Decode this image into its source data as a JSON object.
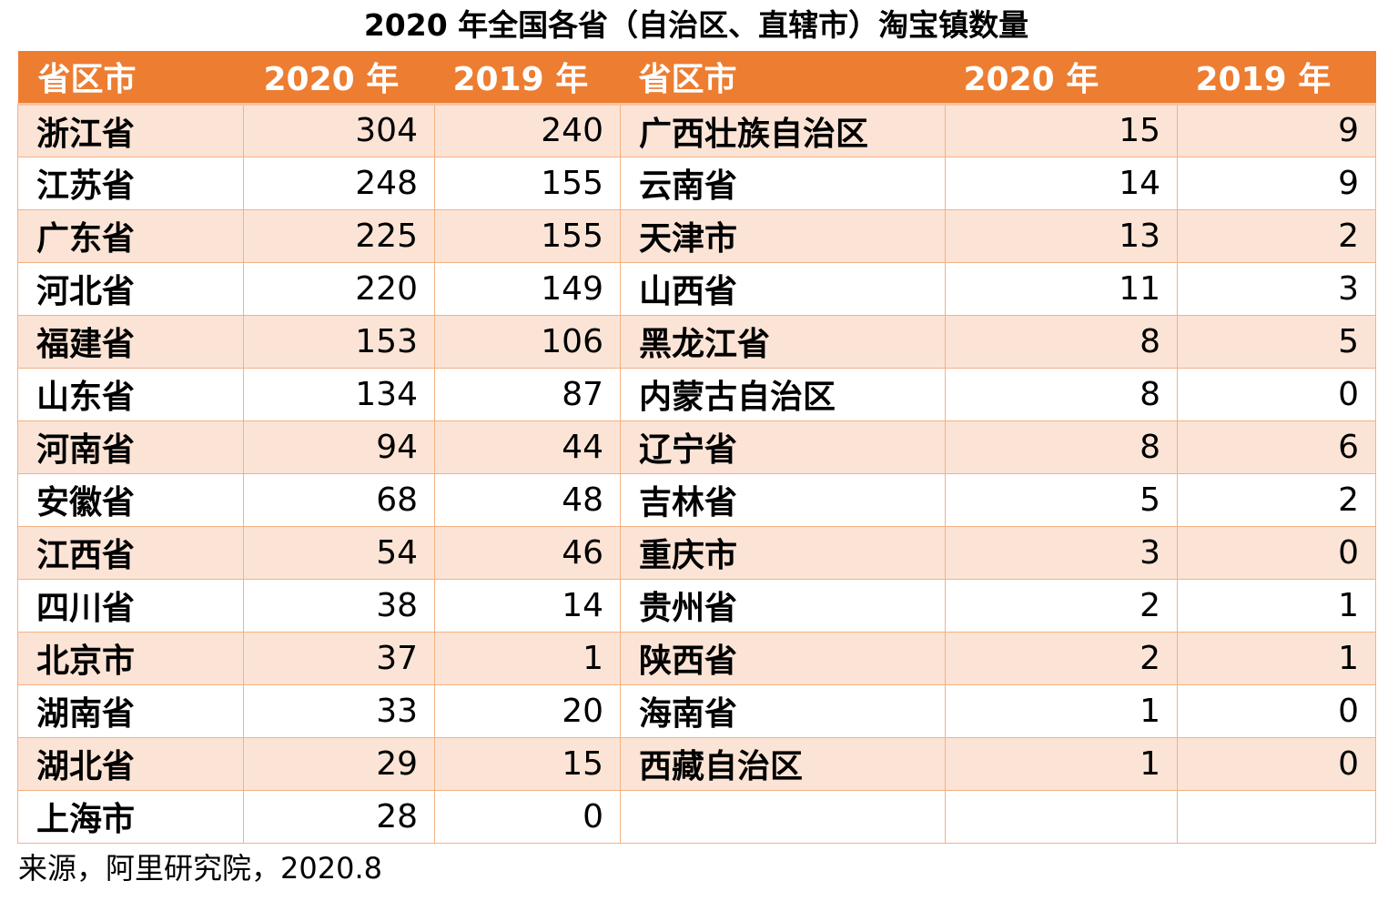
{
  "chart_data": {
    "type": "table",
    "title": "2020 年全国各省（自治区、直辖市）淘宝镇数量",
    "columns": [
      "省区市",
      "2020 年",
      "2019 年",
      "省区市",
      "2020 年",
      "2019 年"
    ],
    "rows": [
      [
        "浙江省",
        "304",
        "240",
        "广西壮族自治区",
        "15",
        "9"
      ],
      [
        "江苏省",
        "248",
        "155",
        "云南省",
        "14",
        "9"
      ],
      [
        "广东省",
        "225",
        "155",
        "天津市",
        "13",
        "2"
      ],
      [
        "河北省",
        "220",
        "149",
        "山西省",
        "11",
        "3"
      ],
      [
        "福建省",
        "153",
        "106",
        "黑龙江省",
        "8",
        "5"
      ],
      [
        "山东省",
        "134",
        "87",
        "内蒙古自治区",
        "8",
        "0"
      ],
      [
        "河南省",
        "94",
        "44",
        "辽宁省",
        "8",
        "6"
      ],
      [
        "安徽省",
        "68",
        "48",
        "吉林省",
        "5",
        "2"
      ],
      [
        "江西省",
        "54",
        "46",
        "重庆市",
        "3",
        "0"
      ],
      [
        "四川省",
        "38",
        "14",
        "贵州省",
        "2",
        "1"
      ],
      [
        "北京市",
        "37",
        "1",
        "陕西省",
        "2",
        "1"
      ],
      [
        "湖南省",
        "33",
        "20",
        "海南省",
        "1",
        "0"
      ],
      [
        "湖北省",
        "29",
        "15",
        "西藏自治区",
        "1",
        "0"
      ],
      [
        "上海市",
        "28",
        "0",
        "",
        "",
        ""
      ]
    ],
    "source": "来源，阿里研究院，2020.8",
    "colors": {
      "header": "#ed7d31",
      "band": "#fbe4d6",
      "border": "#f4b183"
    }
  }
}
